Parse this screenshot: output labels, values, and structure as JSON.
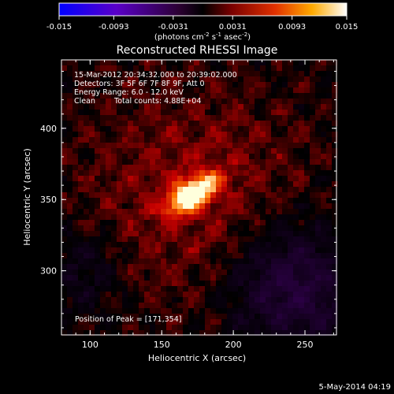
{
  "chart_data": {
    "type": "heatmap",
    "title": "Reconstructed RHESSI Image",
    "xlabel": "Heliocentric X (arcsec)",
    "ylabel": "Heliocentric Y (arcsec)",
    "xlim": [
      80,
      272
    ],
    "ylim": [
      255,
      448
    ],
    "xticks": [
      100,
      150,
      200,
      250
    ],
    "yticks": [
      300,
      350,
      400
    ],
    "colorbar": {
      "range": [
        -0.015,
        0.015
      ],
      "ticks": [
        "-0.015",
        "-0.0093",
        "-0.0031",
        "0.0031",
        "0.0093",
        "0.015"
      ],
      "unit_base": "(photons cm",
      "unit_exp1": "-2",
      "unit_mid": " s",
      "unit_exp2": "-1",
      "unit_mid2": " asec",
      "unit_exp3": "-2",
      "unit_end": ")"
    },
    "annotations": {
      "time_range": "15-Mar-2012 20:34:32.000 to 20:39:02.000",
      "detectors": "Detectors: 3F 5F 6F 7F 8F 9F, Att 0",
      "energy": "Energy Range: 6.0 - 12.0 keV",
      "method": "Clean",
      "total_counts": "Total counts: 4.88E+04",
      "peak": "Position of Peak = [171,354]"
    },
    "peak": {
      "x": 171,
      "y": 354
    },
    "footer_date": "5-May-2014 04:19"
  }
}
